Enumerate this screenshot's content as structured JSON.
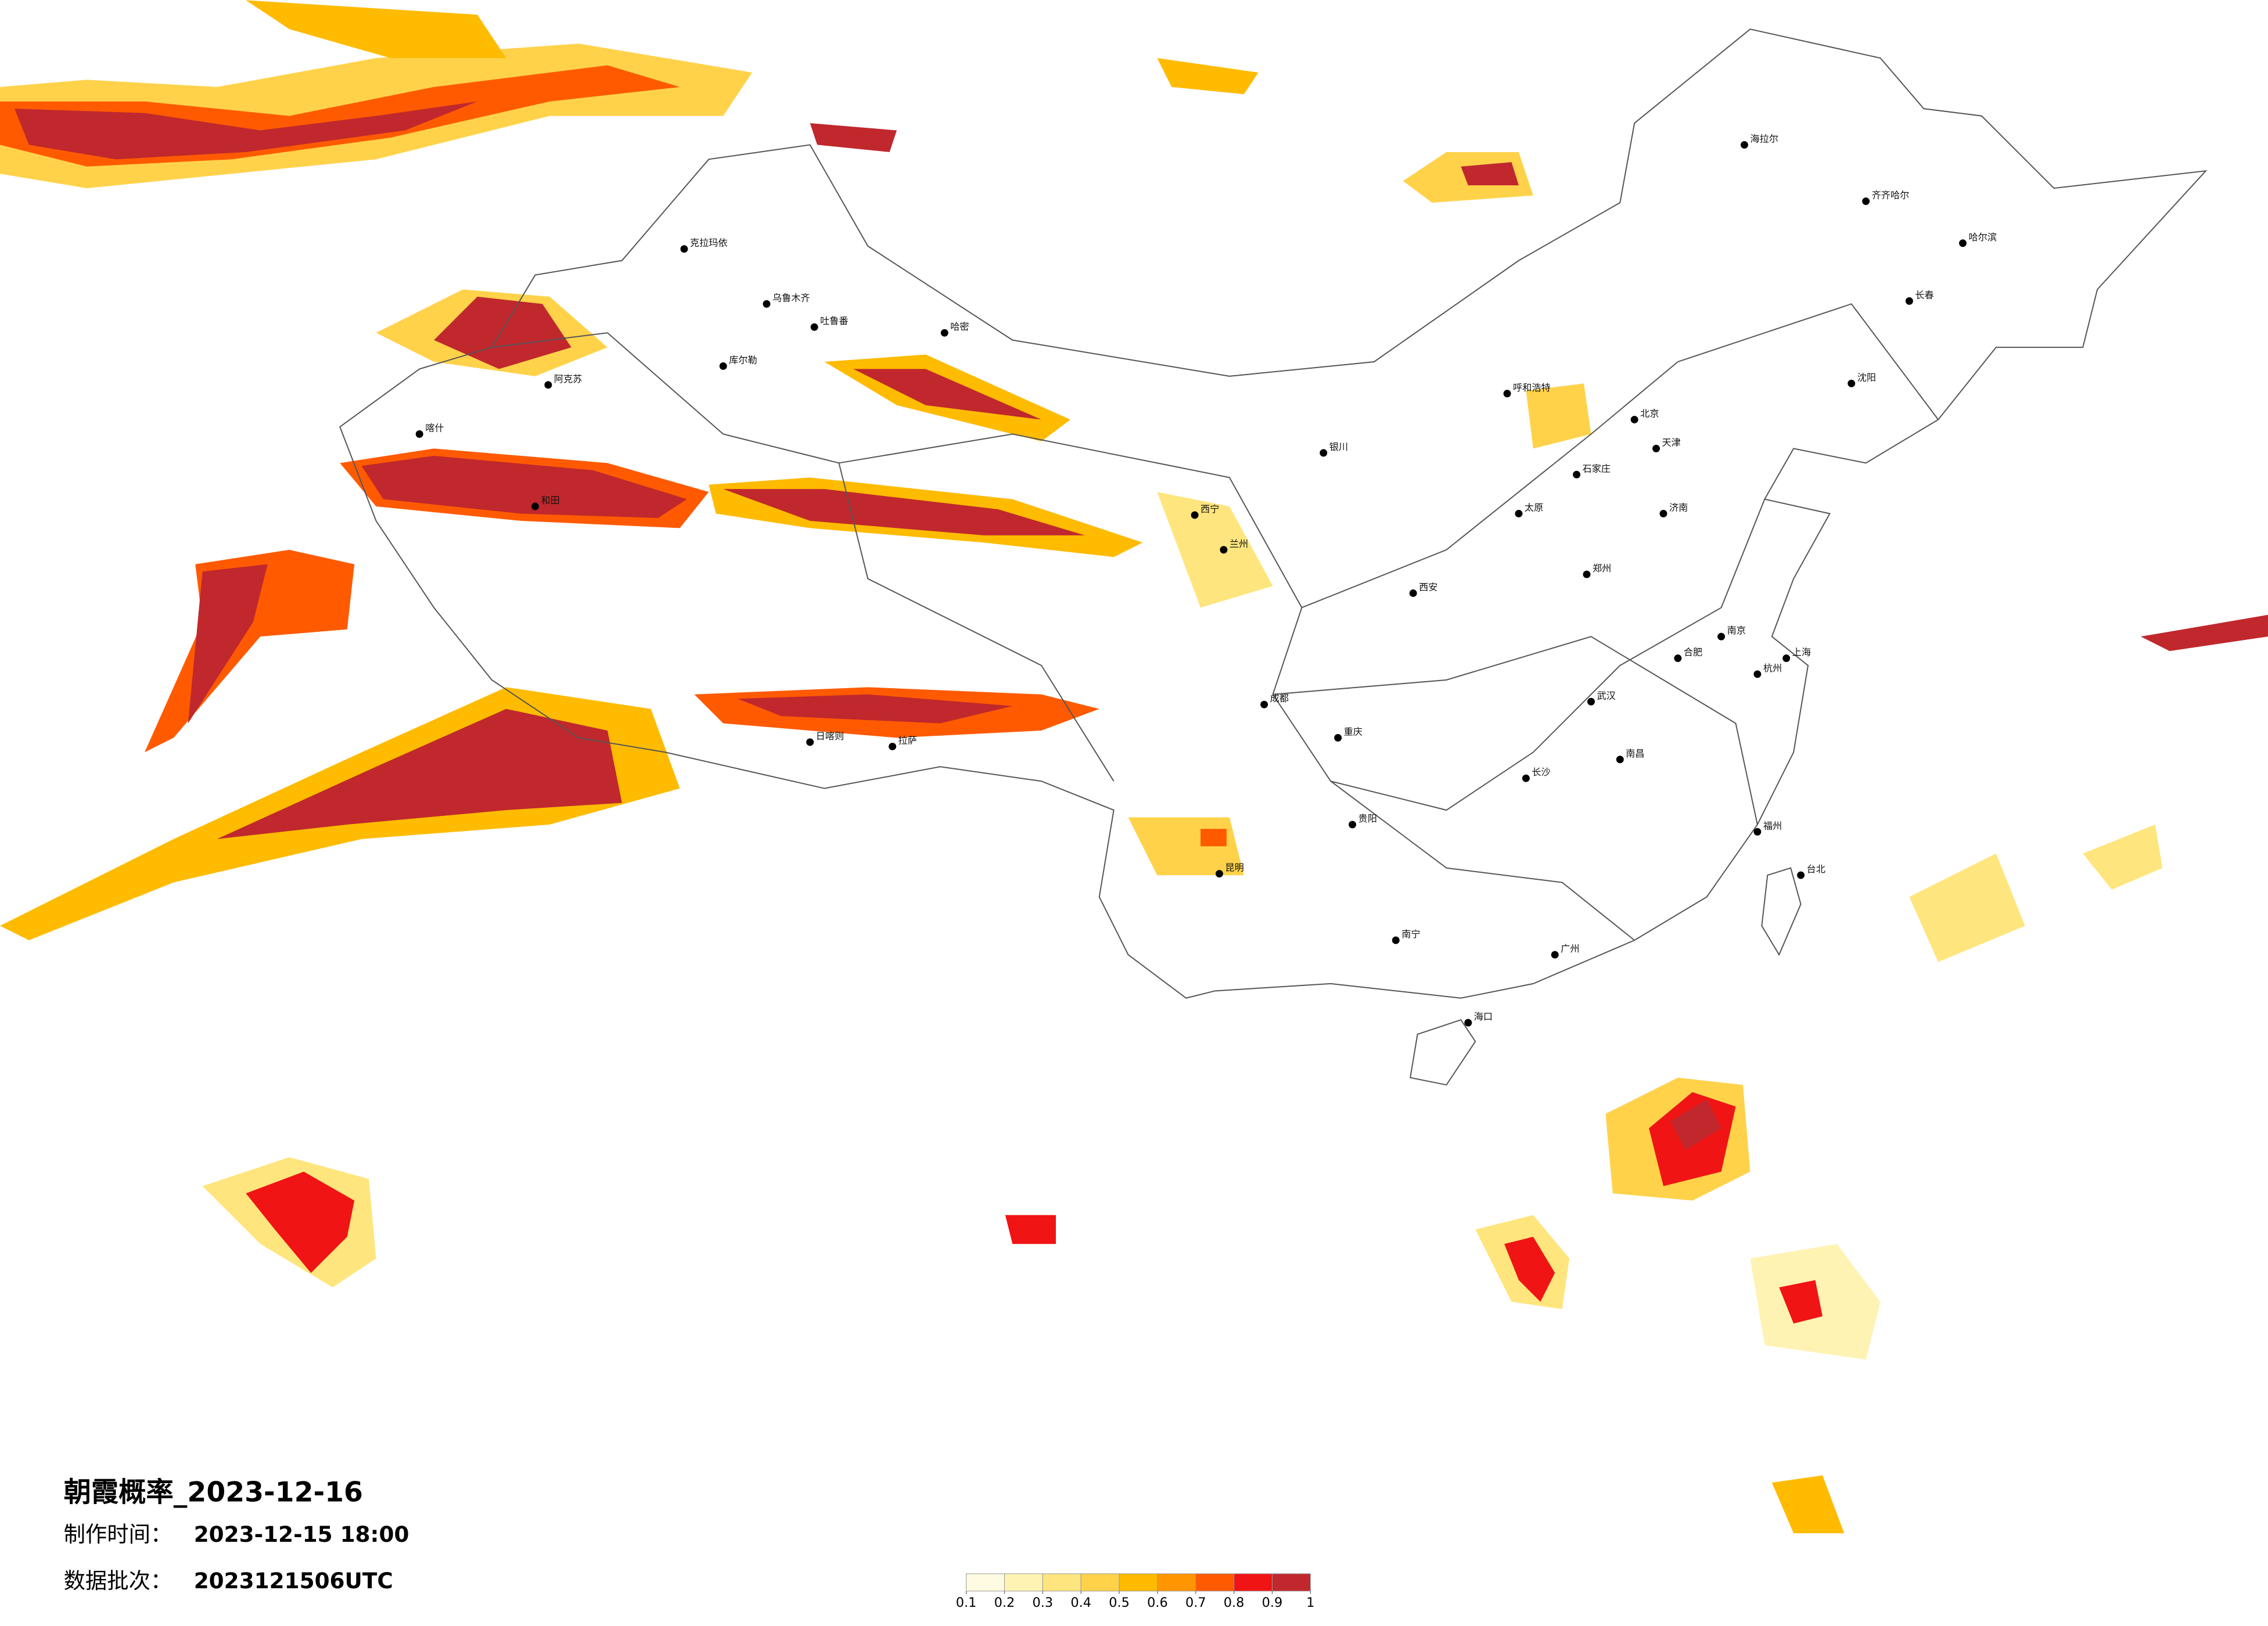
{
  "title": "朝霞概率_2023-12-16",
  "made_label": "制作时间：",
  "made_time": "2023-12-15 18:00",
  "batch_label": "数据批次：",
  "batch": "2023121506UTC",
  "legend": {
    "ticks": [
      0.1,
      0.2,
      0.3,
      0.4,
      0.5,
      0.6,
      0.7,
      0.8,
      0.9,
      1
    ],
    "colors": [
      "#fffbe3",
      "#fff3b4",
      "#ffe57d",
      "#ffd24a",
      "#ffbb00",
      "#ff9500",
      "#ff5a00",
      "#f01414",
      "#c0282d"
    ]
  },
  "cities": [
    "克拉玛依",
    "乌鲁木齐",
    "吐鲁番",
    "哈密",
    "库尔勒",
    "阿克苏",
    "喀什",
    "和田",
    "日喀则",
    "拉萨",
    "西宁",
    "兰州",
    "银川",
    "呼和浩特",
    "海拉尔",
    "齐齐哈尔",
    "哈尔滨",
    "长春",
    "沈阳",
    "北京",
    "天津",
    "石家庄",
    "太原",
    "西安",
    "郑州",
    "济南",
    "南京",
    "上海",
    "武汉",
    "成都",
    "重庆",
    "贵阳",
    "昆明",
    "南宁",
    "广州",
    "福州",
    "长沙",
    "海口",
    "台北",
    "杭州",
    "合肥",
    "南昌"
  ]
}
